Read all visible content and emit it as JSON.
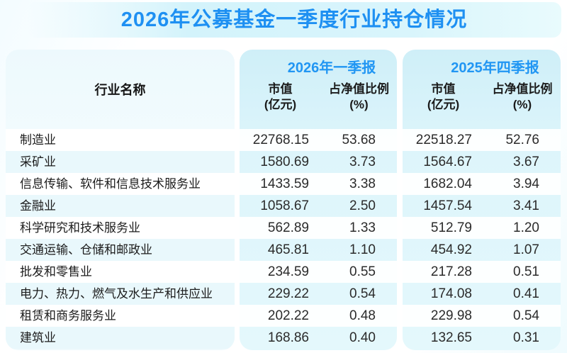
{
  "page": {
    "title": "2026年公募基金一季度行业持仓情况"
  },
  "table": {
    "industry_header": "行业名称",
    "period_2026q1": "2026年一季报",
    "period_2025q4": "2025年四季报",
    "mv_label_line1": "市值",
    "mv_label_line2": "(亿元)",
    "ratio_label_line1": "占净值比例",
    "ratio_label_line2": "(%)"
  },
  "colors": {
    "title_blue": "#1e90f2",
    "period_blue": "#2196f3",
    "panel_cyan": "#ddf5fb",
    "stripe_cyan": "#e9f8fc"
  },
  "chart_data": {
    "type": "table",
    "title": "2026年公募基金一季度行业持仓情况",
    "industry_header": "行业名称",
    "column_groups": [
      {
        "label": "2026年一季报",
        "columns": [
          "市值(亿元)",
          "占净值比例(%)"
        ]
      },
      {
        "label": "2025年四季报",
        "columns": [
          "市值(亿元)",
          "占净值比例(%)"
        ]
      }
    ],
    "rows": [
      {
        "industry": "制造业",
        "mv_2026q1": "22768.15",
        "ratio_2026q1": "53.68",
        "mv_2025q4": "22518.27",
        "ratio_2025q4": "52.76"
      },
      {
        "industry": "采矿业",
        "mv_2026q1": "1580.69",
        "ratio_2026q1": "3.73",
        "mv_2025q4": "1564.67",
        "ratio_2025q4": "3.67"
      },
      {
        "industry": "信息传输、软件和信息技术服务业",
        "mv_2026q1": "1433.59",
        "ratio_2026q1": "3.38",
        "mv_2025q4": "1682.04",
        "ratio_2025q4": "3.94"
      },
      {
        "industry": "金融业",
        "mv_2026q1": "1058.67",
        "ratio_2026q1": "2.50",
        "mv_2025q4": "1457.54",
        "ratio_2025q4": "3.41"
      },
      {
        "industry": "科学研究和技术服务业",
        "mv_2026q1": "562.89",
        "ratio_2026q1": "1.33",
        "mv_2025q4": "512.79",
        "ratio_2025q4": "1.20"
      },
      {
        "industry": "交通运输、仓储和邮政业",
        "mv_2026q1": "465.81",
        "ratio_2026q1": "1.10",
        "mv_2025q4": "454.92",
        "ratio_2025q4": "1.07"
      },
      {
        "industry": "批发和零售业",
        "mv_2026q1": "234.59",
        "ratio_2026q1": "0.55",
        "mv_2025q4": "217.28",
        "ratio_2025q4": "0.51"
      },
      {
        "industry": "电力、热力、燃气及水生产和供应业",
        "mv_2026q1": "229.22",
        "ratio_2026q1": "0.54",
        "mv_2025q4": "174.08",
        "ratio_2025q4": "0.41"
      },
      {
        "industry": "租赁和商务服务业",
        "mv_2026q1": "202.22",
        "ratio_2026q1": "0.48",
        "mv_2025q4": "229.98",
        "ratio_2025q4": "0.54"
      },
      {
        "industry": "建筑业",
        "mv_2026q1": "168.86",
        "ratio_2026q1": "0.40",
        "mv_2025q4": "132.65",
        "ratio_2025q4": "0.31"
      }
    ]
  }
}
